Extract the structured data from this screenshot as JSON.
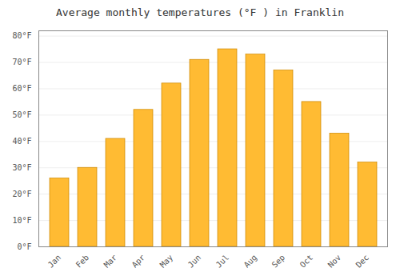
{
  "chart_data": {
    "type": "bar",
    "title": "Average monthly temperatures (°F ) in Franklin",
    "categories": [
      "Jan",
      "Feb",
      "Mar",
      "Apr",
      "May",
      "Jun",
      "Jul",
      "Aug",
      "Sep",
      "Oct",
      "Nov",
      "Dec"
    ],
    "values": [
      26,
      30,
      41,
      52,
      62,
      71,
      75,
      73,
      67,
      55,
      43,
      32
    ],
    "color": "#FFBB33",
    "ylim": [
      0,
      82
    ],
    "yticks": [
      {
        "value": 0,
        "label": "0°F"
      },
      {
        "value": 10,
        "label": "10°F"
      },
      {
        "value": 20,
        "label": "20°F"
      },
      {
        "value": 30,
        "label": "30°F"
      },
      {
        "value": 40,
        "label": "40°F"
      },
      {
        "value": 50,
        "label": "50°F"
      },
      {
        "value": 60,
        "label": "60°F"
      },
      {
        "value": 70,
        "label": "70°F"
      },
      {
        "value": 80,
        "label": "80°F"
      }
    ],
    "grid": true
  }
}
